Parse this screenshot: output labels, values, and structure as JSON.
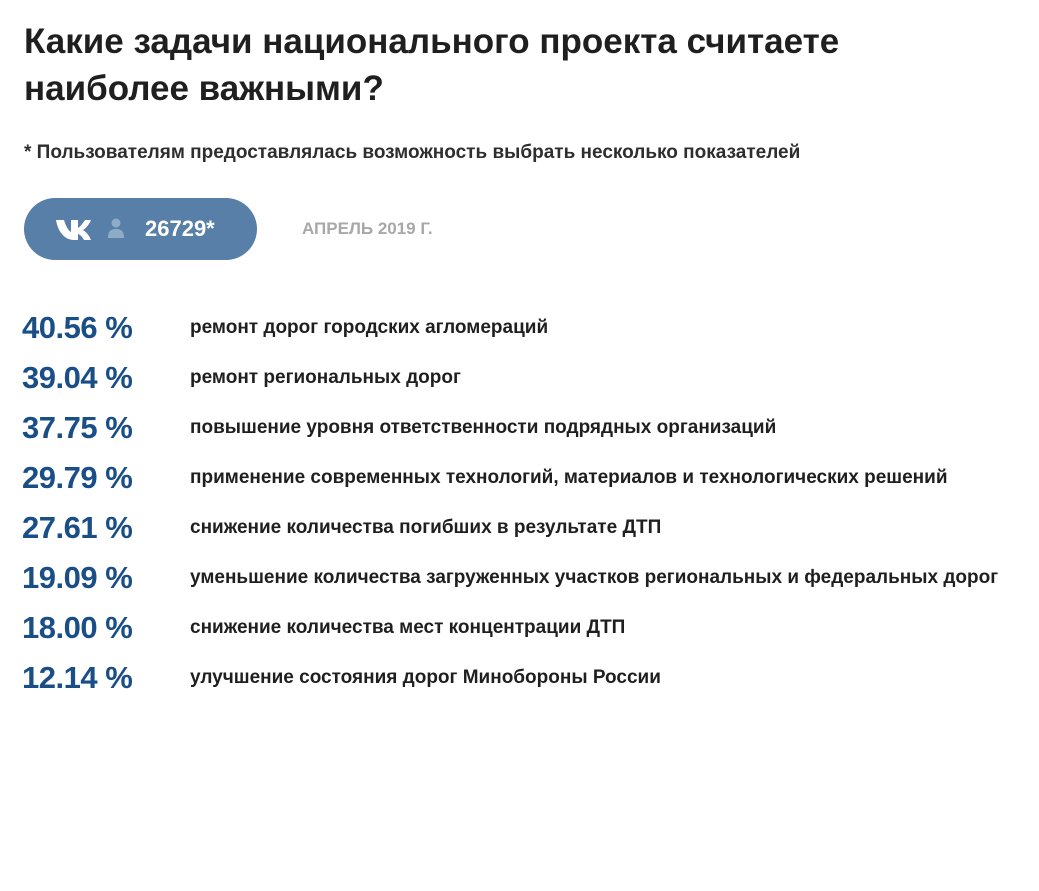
{
  "header": {
    "title": "Какие задачи национального проекта считаете наиболее важными?",
    "note": "* Пользователям предоставлялась возможность выбрать несколько показателей"
  },
  "badge": {
    "icon": "vk-logo-icon",
    "user_icon": "user-icon",
    "count": "26729*",
    "color": "#577fa7"
  },
  "date_label": "АПРЕЛЬ 2019 Г.",
  "accent_color": "#1a4e86",
  "results": [
    {
      "percent": "40.56 %",
      "label": "ремонт дорог городских агломераций"
    },
    {
      "percent": "39.04 %",
      "label": "ремонт региональных дорог"
    },
    {
      "percent": "37.75 %",
      "label": "повышение уровня ответственности подрядных организаций"
    },
    {
      "percent": "29.79 %",
      "label": "применение современных технологий, материалов и технологических решений"
    },
    {
      "percent": "27.61 %",
      "label": "снижение количества погибших в результате ДТП"
    },
    {
      "percent": "19.09 %",
      "label": "уменьшение количества загруженных участков региональных и федеральных дорог"
    },
    {
      "percent": "18.00 %",
      "label": "снижение количества мест концентрации ДТП"
    },
    {
      "percent": "12.14 %",
      "label": "улучшение состояния дорог Минобороны России"
    }
  ]
}
